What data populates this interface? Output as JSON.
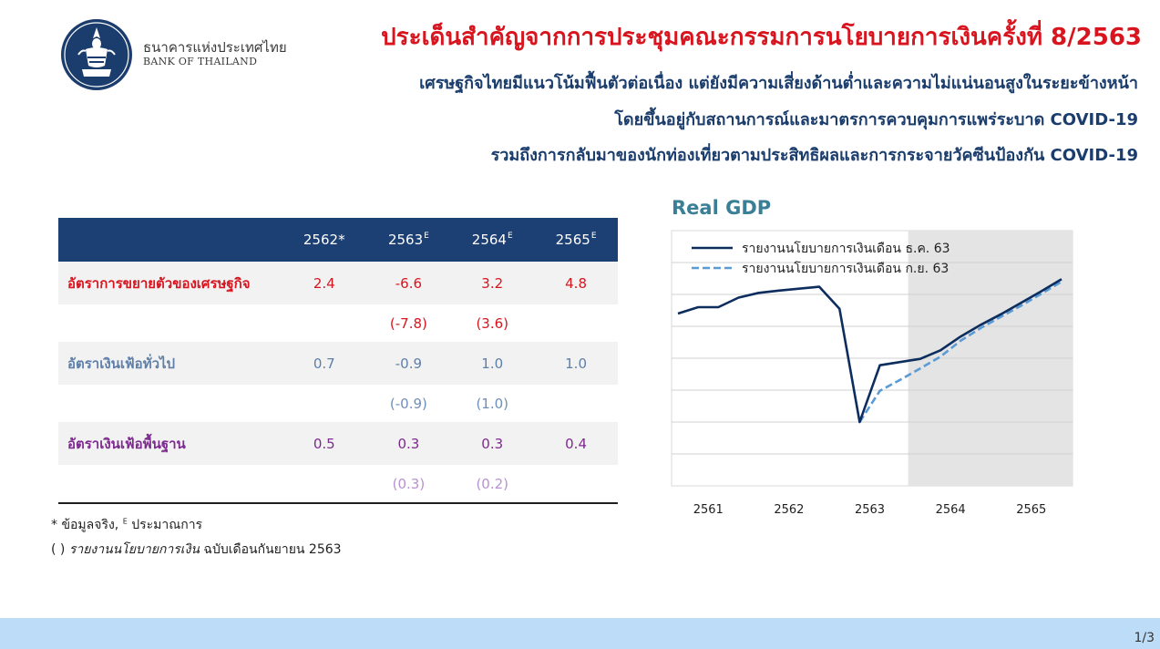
{
  "header": {
    "org_name_th": "ธนาคารแห่งประเทศไทย",
    "org_name_en": "BANK OF THAILAND",
    "title": "ประเด็นสำคัญจากการประชุมคณะกรรมการนโยบายการเงินครั้งที่ 8/2563",
    "subtitle_lines": [
      "เศรษฐกิจไทยมีแนวโน้มฟื้นตัวต่อเนื่อง แต่ยังมีความเสี่ยงด้านต่ำและความไม่แน่นอนสูงในระยะข้างหน้า",
      "โดยขึ้นอยู่กับสถานการณ์และมาตรการควบคุมการแพร่ระบาด COVID-19",
      "รวมถึงการกลับมาของนักท่องเที่ยวตามประสิทธิผลและการกระจายวัคซีนป้องกัน COVID-19"
    ]
  },
  "table": {
    "columns": [
      {
        "year": "2562",
        "suffix": "*"
      },
      {
        "year": "2563",
        "suffix": "E"
      },
      {
        "year": "2564",
        "suffix": "E"
      },
      {
        "year": "2565",
        "suffix": "E"
      }
    ],
    "rows": [
      {
        "label": "อัตราการขยายตัวของเศรษฐกิจ",
        "values": [
          "2.4",
          "-6.6",
          "3.2",
          "4.8"
        ],
        "previous": [
          "",
          "(-7.8)",
          "(3.6)",
          ""
        ]
      },
      {
        "label": "อัตราเงินเฟ้อทั่วไป",
        "values": [
          "0.7",
          "-0.9",
          "1.0",
          "1.0"
        ],
        "previous": [
          "",
          "(-0.9)",
          "(1.0)",
          ""
        ]
      },
      {
        "label": "อัตราเงินเฟ้อพื้นฐาน",
        "values": [
          "0.5",
          "0.3",
          "0.3",
          "0.4"
        ],
        "previous": [
          "",
          "(0.3)",
          "(0.2)",
          ""
        ]
      }
    ]
  },
  "notes": {
    "note1_prefix": "* ข้อมูลจริง, ",
    "note1_sup": "E",
    "note1_suffix": " ประมาณการ",
    "note2_prefix": "( ) ",
    "note2_italic": "รายงานนโยบายการเงิน",
    "note2_suffix": " ฉบับเดือนกันยายน 2563"
  },
  "chart_data": {
    "type": "line",
    "title": "Real GDP",
    "xlabel": "",
    "ylabel": "",
    "x_tick_labels": [
      "2561",
      "2562",
      "2563",
      "2564",
      "2565"
    ],
    "x": [
      "2561Q1",
      "2561Q2",
      "2561Q3",
      "2561Q4",
      "2562Q1",
      "2562Q2",
      "2562Q3",
      "2562Q4",
      "2563Q1",
      "2563Q2",
      "2563Q3",
      "2563Q4",
      "2564Q1",
      "2564Q2",
      "2564Q3",
      "2564Q4",
      "2565Q1",
      "2565Q2",
      "2565Q3",
      "2565Q4"
    ],
    "ylim": [
      0,
      8
    ],
    "grid": true,
    "legend_position": "top-left",
    "forecast_shading_start": "2563Q4",
    "series": [
      {
        "name": "รายงานนโยบายการเงินเดือน ธ.ค. 63",
        "style": "solid",
        "color": "#0c2d5e",
        "values": [
          5.4,
          5.6,
          5.6,
          5.9,
          6.05,
          6.12,
          6.18,
          6.24,
          5.55,
          2.0,
          3.78,
          3.88,
          3.98,
          4.25,
          4.68,
          5.05,
          5.38,
          5.74,
          6.1,
          6.48
        ]
      },
      {
        "name": "รายงานนโยบายการเงินเดือน ก.ย. 63",
        "style": "dashed",
        "color": "#5b9bd5",
        "values": [
          null,
          null,
          null,
          null,
          null,
          null,
          null,
          null,
          null,
          2.0,
          2.98,
          3.32,
          3.68,
          4.05,
          4.55,
          4.95,
          5.3,
          5.65,
          6.02,
          6.4
        ]
      }
    ]
  },
  "footer": {
    "page": "1/3"
  }
}
